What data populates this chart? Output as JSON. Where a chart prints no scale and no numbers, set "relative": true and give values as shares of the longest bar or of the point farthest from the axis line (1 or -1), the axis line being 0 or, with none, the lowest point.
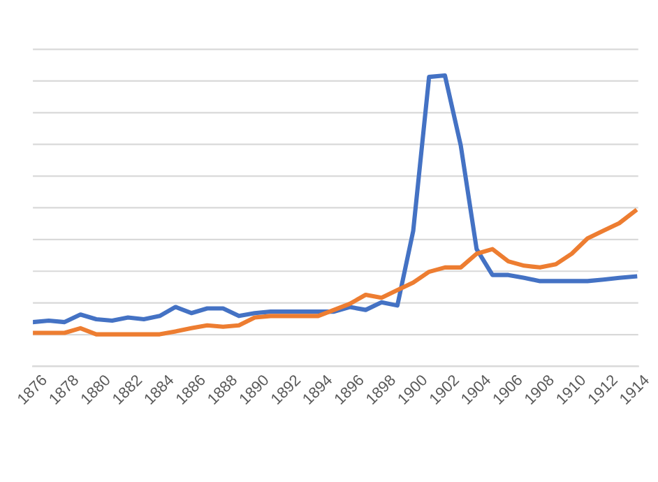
{
  "chart_data": {
    "type": "line",
    "relative": true,
    "grid": "y",
    "categories": [
      "1876",
      null,
      "1878",
      null,
      "1880",
      null,
      "1882",
      null,
      "1884",
      null,
      "1886",
      null,
      "1888",
      null,
      "1890",
      null,
      "1892",
      null,
      "1894",
      null,
      "1896",
      null,
      "1898",
      null,
      "1900",
      null,
      "1902",
      null,
      "1904",
      null,
      "1906",
      null,
      "1908",
      null,
      "1910",
      null,
      "1912",
      null,
      "1914"
    ],
    "series": [
      {
        "color": "#4472c4",
        "values": [
          0.152,
          0.157,
          0.152,
          0.178,
          0.162,
          0.157,
          0.168,
          0.162,
          0.173,
          0.204,
          0.183,
          0.199,
          0.199,
          0.173,
          0.183,
          0.188,
          0.188,
          0.188,
          0.188,
          0.188,
          0.204,
          0.194,
          0.22,
          0.209,
          0.466,
          0.995,
          1,
          0.759,
          0.403,
          0.314,
          0.314,
          0.304,
          0.293,
          0.293,
          0.293,
          0.293,
          0.298,
          0.304,
          0.309
        ]
      },
      {
        "color": "#ed7d31",
        "values": [
          0.115,
          0.115,
          0.115,
          0.131,
          0.11,
          0.11,
          0.11,
          0.11,
          0.11,
          0.12,
          0.131,
          0.141,
          0.136,
          0.141,
          0.168,
          0.173,
          0.173,
          0.173,
          0.173,
          0.194,
          0.215,
          0.246,
          0.236,
          0.262,
          0.288,
          0.325,
          0.34,
          0.34,
          0.387,
          0.403,
          0.361,
          0.346,
          0.34,
          0.351,
          0.387,
          0.44,
          0.466,
          0.492,
          0.534
        ]
      }
    ]
  }
}
